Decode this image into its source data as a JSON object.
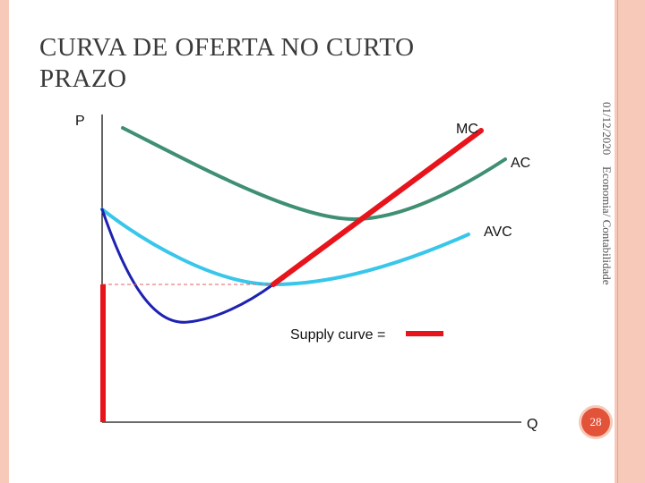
{
  "slide": {
    "title": "CURVA DE OFERTA NO CURTO PRAZO",
    "date": "01/12/2020",
    "organization": "Economia/ Contabilidade",
    "page_number": "28"
  },
  "diagram": {
    "axis_y_label": "P",
    "axis_x_label": "Q",
    "curves": [
      {
        "name": "MC",
        "color": "#1e22b0"
      },
      {
        "name": "AC",
        "color": "#3f8f72"
      },
      {
        "name": "AVC",
        "color": "#38c6ea"
      }
    ],
    "supply_label": "Supply curve =",
    "supply_color": "#e8141c",
    "dashed_line_color": "#e06060"
  }
}
